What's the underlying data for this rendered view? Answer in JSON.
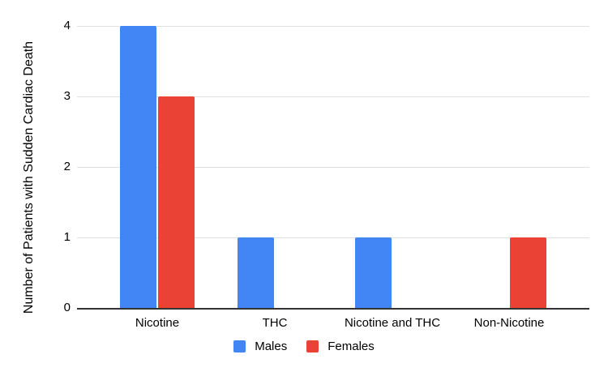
{
  "chart_data": {
    "type": "bar",
    "title": "",
    "xlabel": "",
    "ylabel": "Number of Patients with Sudden Cardiac Death",
    "categories": [
      "Nicotine",
      "THC",
      "Nicotine and THC",
      "Non-Nicotine"
    ],
    "series": [
      {
        "name": "Males",
        "color": "#4285F4",
        "values": [
          4,
          1,
          1,
          0
        ]
      },
      {
        "name": "Females",
        "color": "#EA4335",
        "values": [
          3,
          0,
          0,
          1
        ]
      }
    ],
    "yticks": [
      0,
      1,
      2,
      3,
      4
    ],
    "ylim": [
      0,
      4
    ],
    "grid": true,
    "legend_position": "bottom"
  },
  "colors": {
    "male_blue": "#4285F4",
    "female_red": "#EA4335",
    "gridline": "#E0E0E0",
    "axis_line": "#333333",
    "text": "#000000",
    "background": "#FFFFFF"
  }
}
